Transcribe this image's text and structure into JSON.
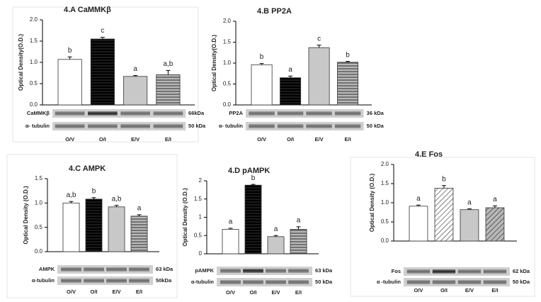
{
  "chart_data": [
    {
      "type": "bar",
      "title": "4.A   CaMMKβ",
      "y_label": "Optical Density(O.D.)",
      "categories": [
        "O/V",
        "O/I",
        "E/V",
        "E/I"
      ],
      "values": [
        1.07,
        1.55,
        0.67,
        0.71
      ],
      "errors": [
        0.06,
        0.04,
        0.02,
        0.1
      ],
      "annotations": [
        "b",
        "c",
        "a",
        "a,b"
      ],
      "colors": [
        "#ffffff",
        "#ffffff",
        "#c8c8c8",
        "#b0b0b0"
      ],
      "patterns": [
        "none",
        "hlines",
        "none",
        "hlines"
      ],
      "ylim": [
        0,
        2
      ],
      "yticks": [
        {
          "value": 0,
          "label": "0.0"
        },
        0.5,
        {
          "value": 1,
          "label": "1.0"
        },
        1.5,
        {
          "value": 2,
          "label": "2.0"
        }
      ],
      "blots": [
        {
          "label": "CaMMKβ",
          "size": "66kDa"
        },
        {
          "label": "α- tubulin",
          "size": "50 kDa"
        }
      ]
    },
    {
      "type": "bar",
      "title": "4.B   PP2A",
      "y_label": "Optical Density(O.D.)",
      "categories": [
        "O/V",
        "O/I",
        "E/V",
        "E/I"
      ],
      "values": [
        0.96,
        0.65,
        1.37,
        1.02
      ],
      "errors": [
        0.03,
        0.04,
        0.06,
        0.02
      ],
      "annotations": [
        "b",
        "a",
        "c",
        "b"
      ],
      "colors": [
        "#ffffff",
        "#ffffff",
        "#c8c8c8",
        "#b0b0b0"
      ],
      "patterns": [
        "none",
        "hlines",
        "none",
        "hlines"
      ],
      "ylim": [
        0,
        2
      ],
      "yticks": [
        {
          "value": 0,
          "label": "0.0"
        },
        0.5,
        {
          "value": 1,
          "label": "1.0"
        },
        1.5,
        {
          "value": 2,
          "label": "2.0"
        }
      ],
      "blots": [
        {
          "label": "PP2A",
          "size": "36 kDa"
        },
        {
          "label": "α- tubulin",
          "size": "50 kDa"
        }
      ]
    },
    {
      "type": "bar",
      "title": "4.C   AMPK",
      "y_label": "Optical Density (O.D.)",
      "categories": [
        "O/V",
        "O/I",
        "E/V",
        "E/I"
      ],
      "values": [
        1.0,
        1.08,
        0.92,
        0.73
      ],
      "errors": [
        0.03,
        0.03,
        0.03,
        0.03
      ],
      "annotations": [
        "a,b",
        "b",
        "a,b",
        "a"
      ],
      "colors": [
        "#ffffff",
        "#ffffff",
        "#c8c8c8",
        "#b0b0b0"
      ],
      "patterns": [
        "none",
        "hlines",
        "none",
        "hlines"
      ],
      "ylim": [
        0,
        1.5
      ],
      "yticks": [
        {
          "value": 0,
          "label": "0.0"
        },
        0.5,
        {
          "value": 1,
          "label": "1.0"
        },
        1.5
      ],
      "blots": [
        {
          "label": "AMPK",
          "size": "63 kDa"
        },
        {
          "label": "α-tubulin",
          "size": "50kDa"
        }
      ]
    },
    {
      "type": "bar",
      "title": "4.D   pAMPK",
      "y_label": "Optical Density (O.D.)",
      "categories": [
        "O/V",
        "O/I",
        "E/V",
        "E/I"
      ],
      "values": [
        0.67,
        1.88,
        0.47,
        0.67
      ],
      "errors": [
        0.03,
        0.02,
        0.03,
        0.07
      ],
      "annotations": [
        "a",
        "b",
        "a",
        "a"
      ],
      "colors": [
        "#ffffff",
        "#ffffff",
        "#c8c8c8",
        "#b0b0b0"
      ],
      "patterns": [
        "none",
        "hlines",
        "none",
        "hlines"
      ],
      "ylim": [
        0,
        2
      ],
      "yticks": [
        0,
        0.5,
        1,
        1.5,
        2
      ],
      "blots": [
        {
          "label": "pAMPK",
          "size": "63 kDa"
        },
        {
          "label": "α-tubulin",
          "size": "50 kDa"
        }
      ]
    },
    {
      "type": "bar",
      "title": "4.E   Fos",
      "y_label": "Optical Density (O.D.)",
      "categories": [
        "O/V",
        "O/I",
        "E/V",
        "E/I"
      ],
      "values": [
        0.91,
        1.38,
        0.82,
        0.87
      ],
      "errors": [
        0.03,
        0.07,
        0.02,
        0.05
      ],
      "annotations": [
        "a",
        "b",
        "a",
        "a"
      ],
      "colors": [
        "#ffffff",
        "#ffffff",
        "#c8c8c8",
        "#b0b0b0"
      ],
      "patterns": [
        "none",
        "diag",
        "none",
        "diag"
      ],
      "ylim": [
        0,
        2
      ],
      "yticks": [
        {
          "value": 0,
          "label": "0.0"
        },
        0.5,
        {
          "value": 1,
          "label": "1.0"
        },
        1.5,
        {
          "value": 2,
          "label": "2.0"
        }
      ],
      "blots": [
        {
          "label": "Fos",
          "size": "62 kDa"
        },
        {
          "label": "α -tubulin",
          "size": "50 kDa"
        }
      ]
    }
  ]
}
